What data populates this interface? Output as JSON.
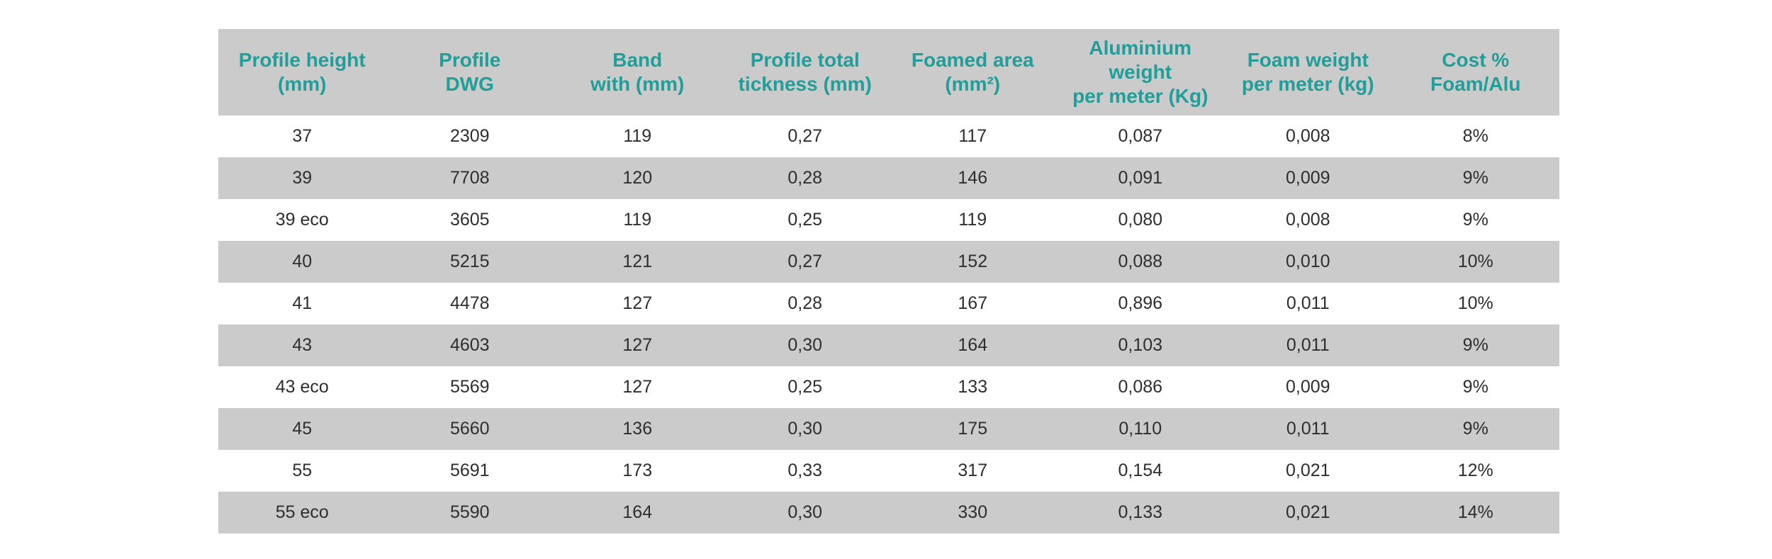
{
  "table": {
    "headers": [
      "Profile height\n(mm)",
      "Profile\nDWG",
      "Band\nwith (mm)",
      "Profile total\ntickness (mm)",
      "Foamed area\n(mm²)",
      "Aluminium\nweight\nper meter (Kg)",
      "Foam weight\nper meter (kg)",
      "Cost %\nFoam/Alu"
    ],
    "rows": [
      [
        "37",
        "2309",
        "119",
        "0,27",
        "117",
        "0,087",
        "0,008",
        "8%"
      ],
      [
        "39",
        "7708",
        "120",
        "0,28",
        "146",
        "0,091",
        "0,009",
        "9%"
      ],
      [
        "39 eco",
        "3605",
        "119",
        "0,25",
        "119",
        "0,080",
        "0,008",
        "9%"
      ],
      [
        "40",
        "5215",
        "121",
        "0,27",
        "152",
        "0,088",
        "0,010",
        "10%"
      ],
      [
        "41",
        "4478",
        "127",
        "0,28",
        "167",
        "0,896",
        "0,011",
        "10%"
      ],
      [
        "43",
        "4603",
        "127",
        "0,30",
        "164",
        "0,103",
        "0,011",
        "9%"
      ],
      [
        "43 eco",
        "5569",
        "127",
        "0,25",
        "133",
        "0,086",
        "0,009",
        "9%"
      ],
      [
        "45",
        "5660",
        "136",
        "0,30",
        "175",
        "0,110",
        "0,011",
        "9%"
      ],
      [
        "55",
        "5691",
        "173",
        "0,33",
        "317",
        "0,154",
        "0,021",
        "12%"
      ],
      [
        "55 eco",
        "5590",
        "164",
        "0,30",
        "330",
        "0,133",
        "0,021",
        "14%"
      ]
    ]
  },
  "colors": {
    "header_text": "#1f9e9a",
    "stripe": "#cbcbcb",
    "body_text": "#2e2e2e"
  }
}
